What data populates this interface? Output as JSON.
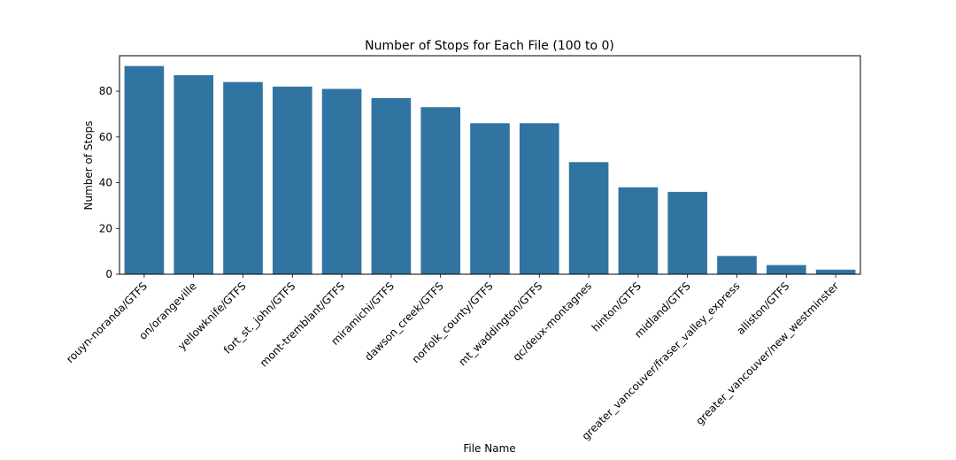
{
  "chart_data": {
    "type": "bar",
    "title": "Number of Stops for Each File (100 to 0)",
    "xlabel": "File Name",
    "ylabel": "Number of Stops",
    "categories": [
      "rouyn-noranda/GTFS",
      "on/orangeville",
      "yellowknife/GTFS",
      "fort_st._john/GTFS",
      "mont-tremblant/GTFS",
      "miramichi/GTFS",
      "dawson_creek/GTFS",
      "norfolk_county/GTFS",
      "mt_waddington/GTFS",
      "qc/deux-montagnes",
      "hinton/GTFS",
      "midland/GTFS",
      "greater_vancouver/fraser_valley_express",
      "alliston/GTFS",
      "greater_vancouver/new_westminster"
    ],
    "values": [
      91,
      87,
      84,
      82,
      81,
      77,
      73,
      66,
      66,
      49,
      38,
      36,
      8,
      4,
      2
    ],
    "yticks": [
      "0",
      "20",
      "40",
      "60",
      "80"
    ],
    "ylim": [
      0,
      95.5
    ],
    "bar_color": "#3274a1",
    "grid": false,
    "legend": "none"
  }
}
